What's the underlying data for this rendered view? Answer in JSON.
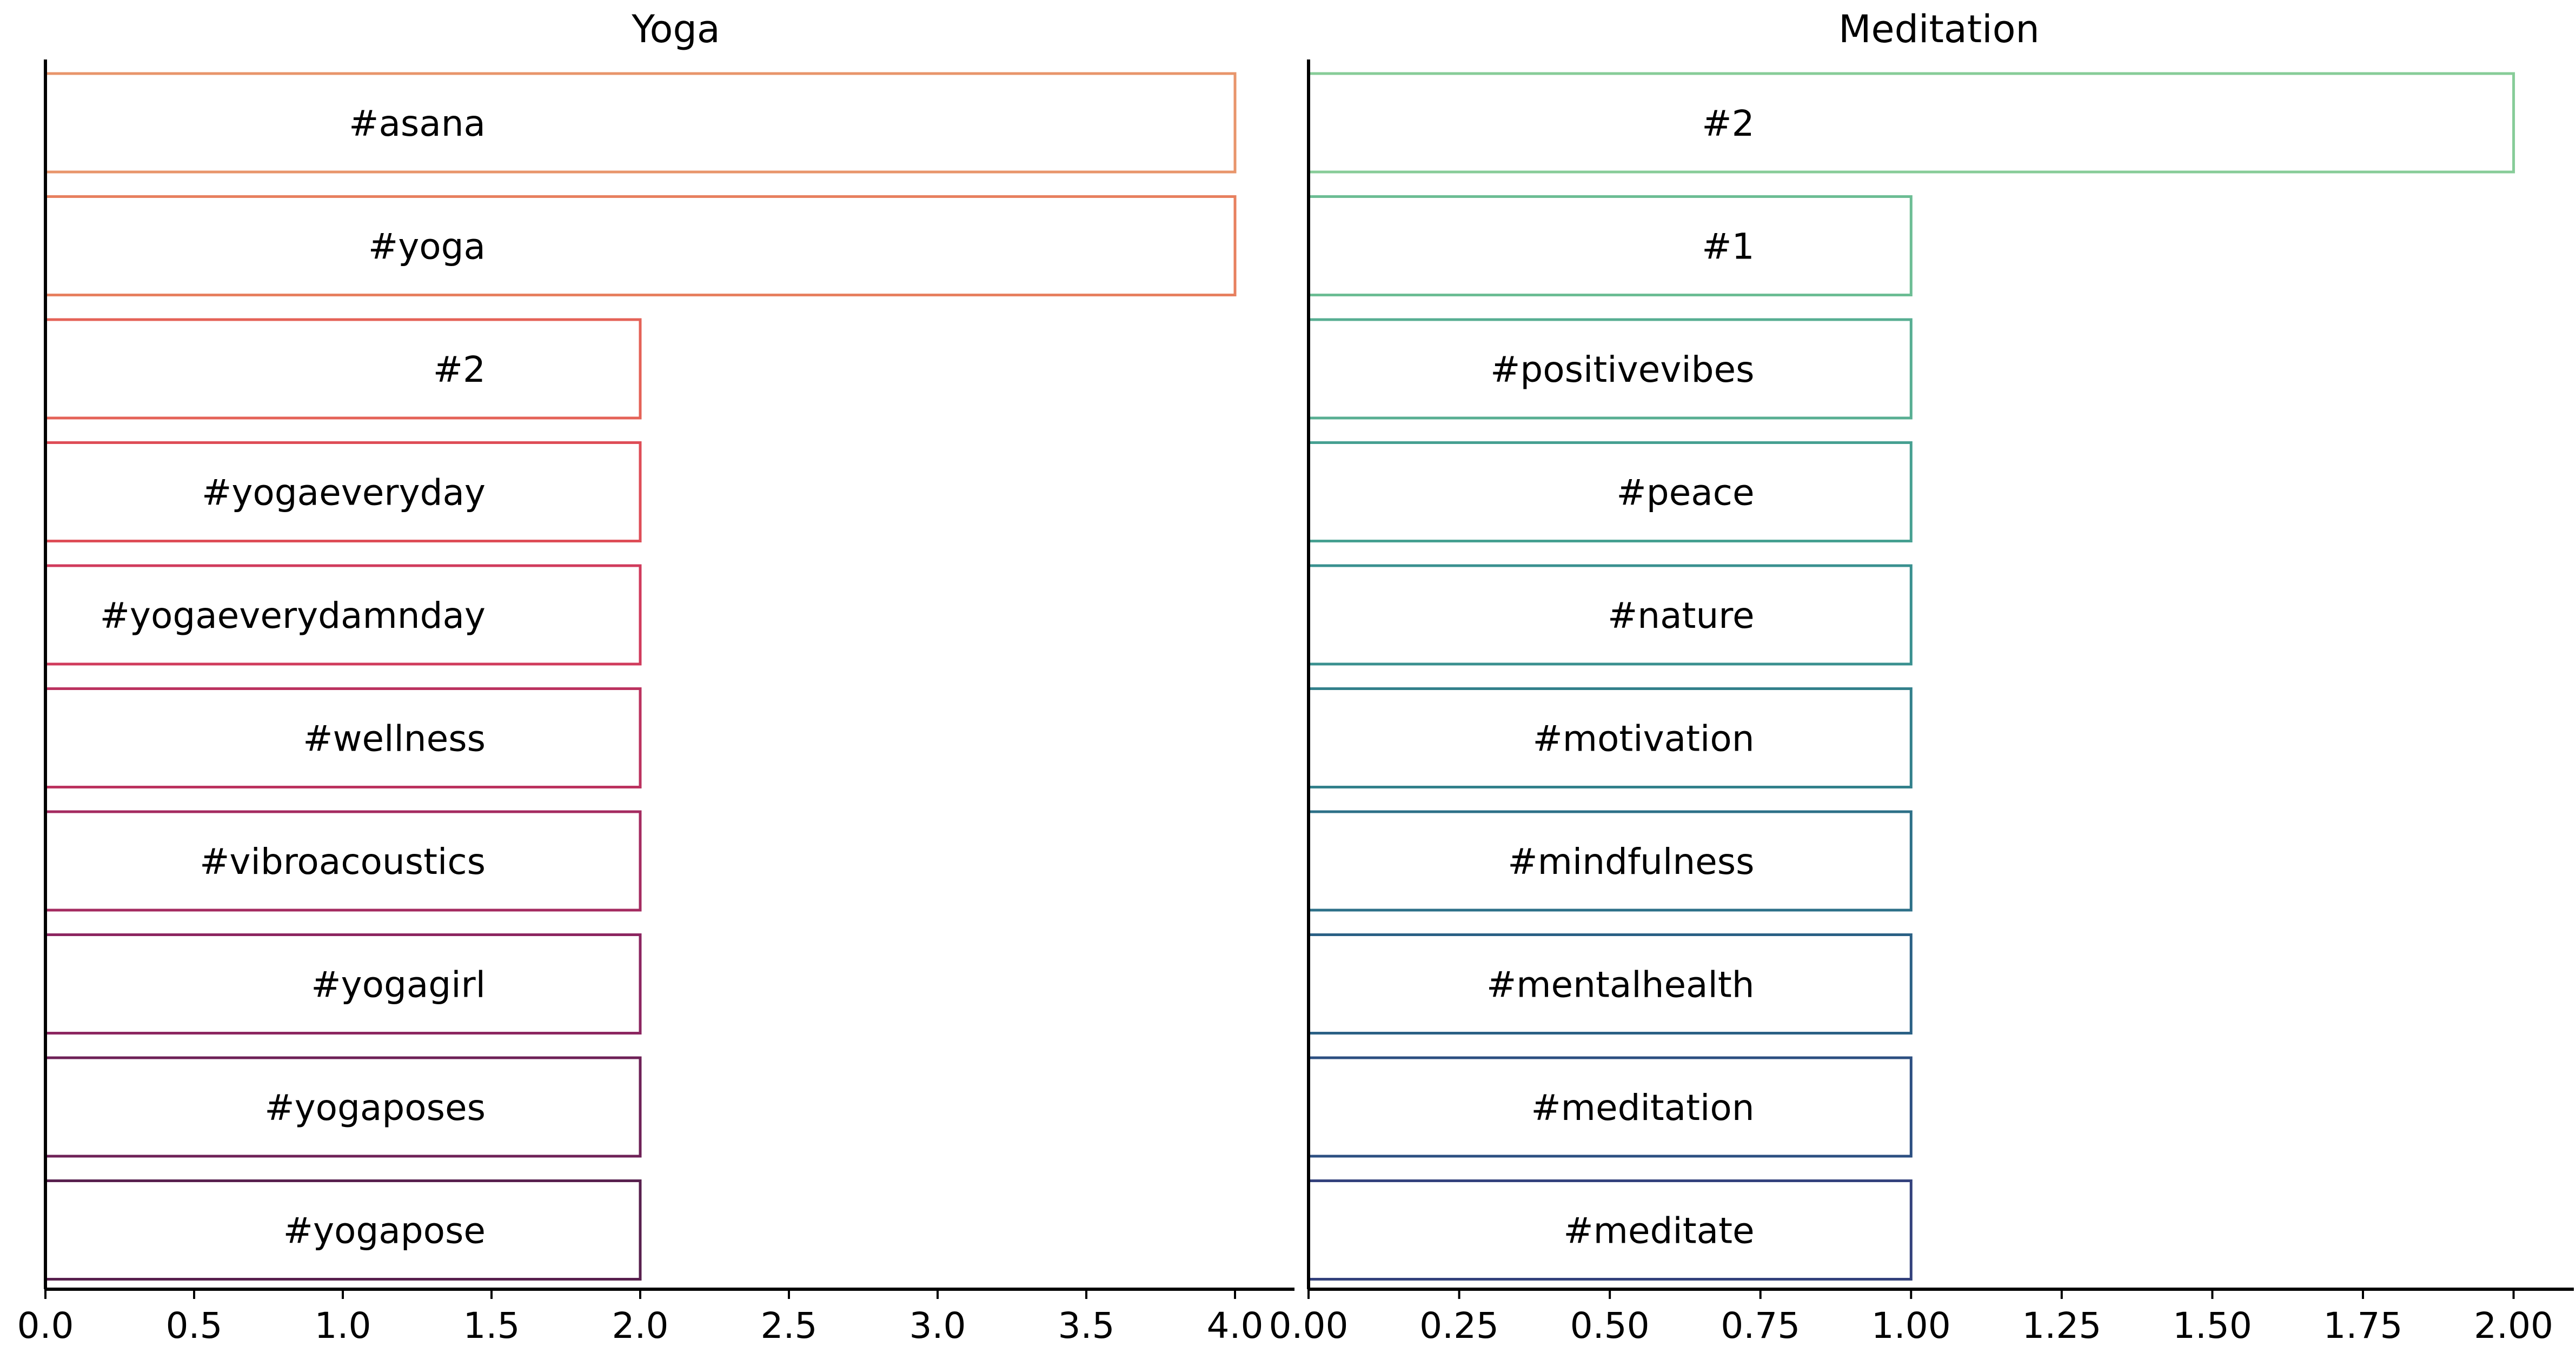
{
  "chart_data": [
    {
      "type": "bar",
      "orientation": "horizontal",
      "title": "Yoga",
      "xlabel": "",
      "ylabel": "",
      "xlim": [
        0,
        4.2
      ],
      "xticks": [
        "0.0",
        "0.5",
        "1.0",
        "1.5",
        "2.0",
        "2.5",
        "3.0",
        "3.5",
        "4.0"
      ],
      "categories": [
        "#asana",
        "#yoga",
        "#2",
        "#yogaeveryday",
        "#yogaeverydamnday",
        "#wellness",
        "#vibroacoustics",
        "#yogagirl",
        "#yogaposes",
        "#yogapose"
      ],
      "values": [
        4,
        4,
        2,
        2,
        2,
        2,
        2,
        2,
        2,
        2
      ],
      "colors": [
        "#e8956b",
        "#e7805f",
        "#e46257",
        "#de4d57",
        "#d03b5c",
        "#bb325f",
        "#a42b60",
        "#8c2560",
        "#6e2157",
        "#58204e"
      ],
      "grid": false,
      "bar_fill": "none"
    },
    {
      "type": "bar",
      "orientation": "horizontal",
      "title": "Meditation",
      "xlabel": "",
      "ylabel": "",
      "xlim": [
        0,
        2.1
      ],
      "xticks": [
        "0.00",
        "0.25",
        "0.50",
        "0.75",
        "1.00",
        "1.25",
        "1.50",
        "1.75",
        "2.00"
      ],
      "categories": [
        "#2",
        "#1",
        "#positivevibes",
        "#peace",
        "#nature",
        "#motivation",
        "#mindfulness",
        "#mentalhealth",
        "#meditation",
        "#meditate"
      ],
      "values": [
        2,
        1,
        1,
        1,
        1,
        1,
        1,
        1,
        1,
        1
      ],
      "colors": [
        "#87cc98",
        "#6cbd94",
        "#57ae92",
        "#46a091",
        "#39908f",
        "#32808b",
        "#2d7088",
        "#2a6085",
        "#2c4f81",
        "#33417c"
      ],
      "grid": false,
      "bar_fill": "none"
    }
  ]
}
